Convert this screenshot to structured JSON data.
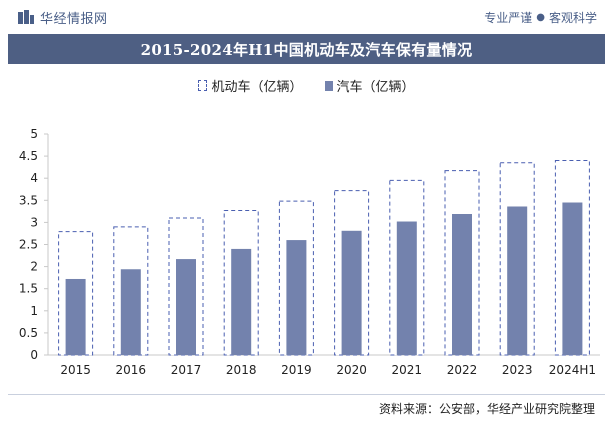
{
  "header": {
    "site_name": "华经情报网",
    "slogan_left": "专业严谨",
    "slogan_dot": "●",
    "slogan_right": "客观科学"
  },
  "colors": {
    "title_bg": "#4e5f83",
    "bar_solid": "#7382ad",
    "bar_dash": "#4a5fb0"
  },
  "source_text": "资料来源：公安部，华经产业研究院整理",
  "chart_data": {
    "type": "bar",
    "title": "2015-2024年H1中国机动车及汽车保有量情况",
    "categories": [
      "2015",
      "2016",
      "2017",
      "2018",
      "2019",
      "2020",
      "2021",
      "2022",
      "2023",
      "2024H1"
    ],
    "series": [
      {
        "name": "机动车（亿辆）",
        "style": "dashed-outline",
        "values": [
          2.79,
          2.9,
          3.1,
          3.27,
          3.48,
          3.72,
          3.95,
          4.17,
          4.35,
          4.4
        ]
      },
      {
        "name": "汽车（亿辆）",
        "style": "solid",
        "values": [
          1.72,
          1.94,
          2.17,
          2.4,
          2.6,
          2.81,
          3.02,
          3.19,
          3.36,
          3.45
        ]
      }
    ],
    "yticks": [
      "0",
      "0.5",
      "1",
      "1.5",
      "2",
      "2.5",
      "3",
      "3.5",
      "4",
      "4.5",
      "5"
    ],
    "ylim": [
      0,
      5
    ],
    "grid": false,
    "legend_position": "top-center"
  }
}
